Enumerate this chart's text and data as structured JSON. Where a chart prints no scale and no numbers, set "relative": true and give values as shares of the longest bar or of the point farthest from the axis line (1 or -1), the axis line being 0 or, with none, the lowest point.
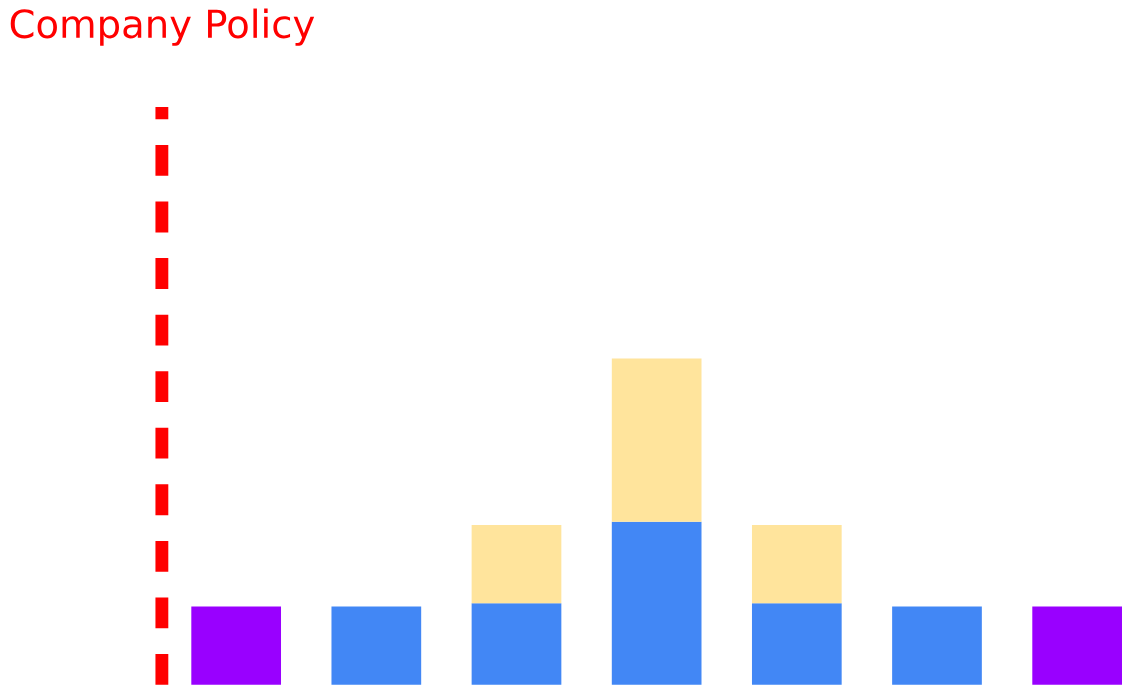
{
  "chart_data": {
    "type": "bar",
    "stacked": true,
    "relative": true,
    "categories": [
      null,
      null,
      null,
      null,
      null,
      null,
      null
    ],
    "series": [
      {
        "colors": [
          "#9900ff",
          "#4287f5",
          "#4287f5",
          "#4287f5",
          "#4287f5",
          "#4287f5",
          "#9900ff"
        ],
        "values": [
          0.24,
          0.24,
          0.25,
          0.5,
          0.25,
          0.24,
          0.24
        ]
      },
      {
        "color": "#ffe49c",
        "values": [
          null,
          null,
          0.24,
          0.5,
          0.24,
          null,
          null
        ]
      }
    ],
    "annotations": [
      "Company Policy"
    ]
  }
}
